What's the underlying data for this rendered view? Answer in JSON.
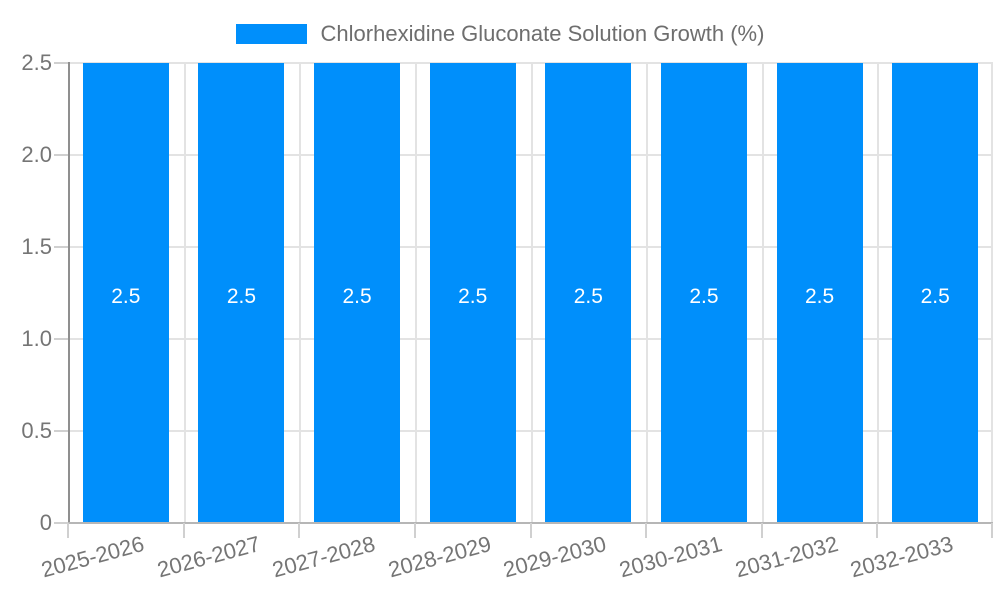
{
  "legend": {
    "label": "Chlorhexidine Gluconate Solution Growth (%)"
  },
  "chart_data": {
    "type": "bar",
    "title": "Chlorhexidine Gluconate Solution Growth (%)",
    "categories": [
      "2025-2026",
      "2026-2027",
      "2027-2028",
      "2028-2029",
      "2029-2030",
      "2030-2031",
      "2031-2032",
      "2032-2033"
    ],
    "series": [
      {
        "name": "Chlorhexidine Gluconate Solution Growth (%)",
        "values": [
          2.5,
          2.5,
          2.5,
          2.5,
          2.5,
          2.5,
          2.5,
          2.5
        ]
      }
    ],
    "bar_labels": [
      "2.5",
      "2.5",
      "2.5",
      "2.5",
      "2.5",
      "2.5",
      "2.5",
      "2.5"
    ],
    "xlabel": "",
    "ylabel": "",
    "ylim": [
      0,
      2.5
    ],
    "ytick_labels": [
      "2.5",
      "2.0",
      "1.5",
      "1.0",
      "0.5",
      "0"
    ],
    "grid": true,
    "legend_position": "top-center",
    "colors": {
      "bar": "#008FFB",
      "bar_label": "#FFFFFF",
      "axis_text": "#757575",
      "legend_text": "#6E6E6E",
      "gridline": "#E3E3E3",
      "axis_line": "#8F8F8F"
    }
  }
}
